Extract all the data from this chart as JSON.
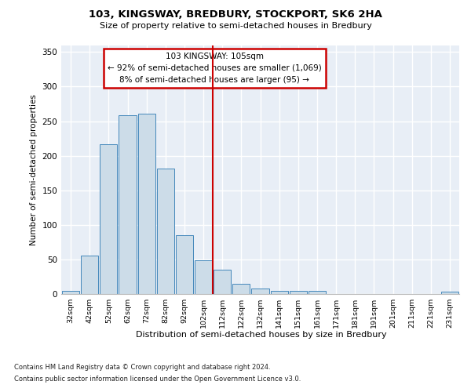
{
  "title": "103, KINGSWAY, BREDBURY, STOCKPORT, SK6 2HA",
  "subtitle": "Size of property relative to semi-detached houses in Bredbury",
  "xlabel_bottom": "Distribution of semi-detached houses by size in Bredbury",
  "ylabel": "Number of semi-detached properties",
  "footnote1": "Contains HM Land Registry data © Crown copyright and database right 2024.",
  "footnote2": "Contains public sector information licensed under the Open Government Licence v3.0.",
  "bar_color": "#ccdce8",
  "bar_edge_color": "#4488bb",
  "background_color": "#e8eef6",
  "grid_color": "#ffffff",
  "annotation_box_color": "#cc0000",
  "vline_color": "#cc0000",
  "property_size": 105,
  "annotation_title": "103 KINGSWAY: 105sqm",
  "annotation_line1": "← 92% of semi-detached houses are smaller (1,069)",
  "annotation_line2": "8% of semi-detached houses are larger (95) →",
  "categories": [
    "32sqm",
    "42sqm",
    "52sqm",
    "62sqm",
    "72sqm",
    "82sqm",
    "92sqm",
    "102sqm",
    "112sqm",
    "122sqm",
    "132sqm",
    "141sqm",
    "151sqm",
    "161sqm",
    "171sqm",
    "181sqm",
    "191sqm",
    "201sqm",
    "211sqm",
    "221sqm",
    "231sqm"
  ],
  "values": [
    5,
    55,
    216,
    258,
    261,
    181,
    85,
    49,
    35,
    15,
    8,
    5,
    4,
    4,
    0,
    0,
    0,
    0,
    0,
    0,
    3
  ],
  "ylim": [
    0,
    360
  ],
  "yticks": [
    0,
    50,
    100,
    150,
    200,
    250,
    300,
    350
  ]
}
